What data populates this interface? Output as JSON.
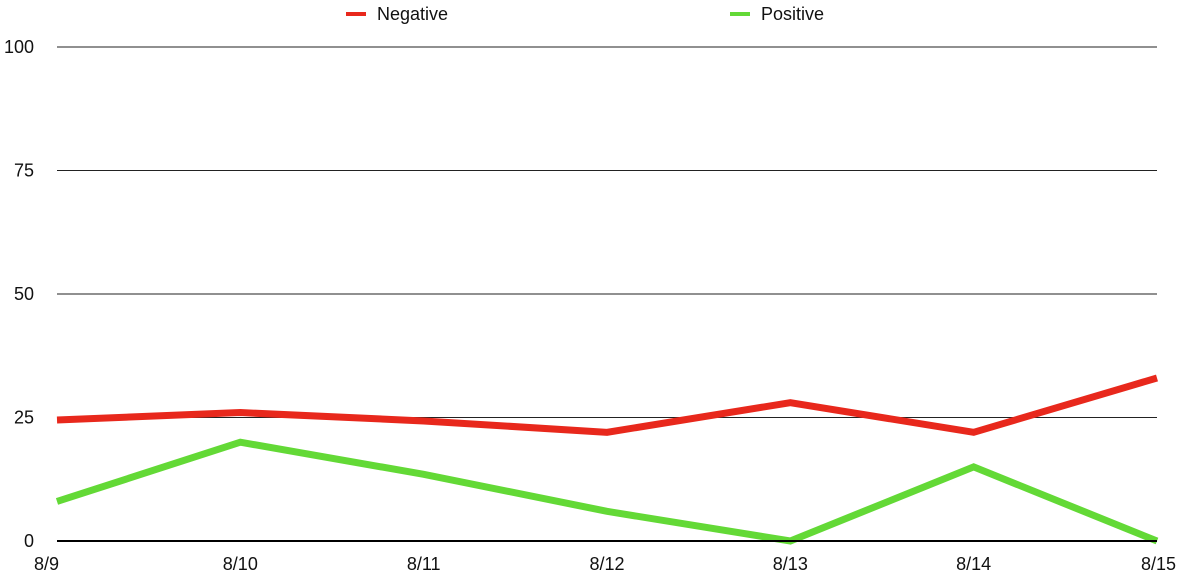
{
  "chart_data": {
    "type": "line",
    "title": "",
    "xlabel": "",
    "ylabel": "",
    "categories": [
      "8/9",
      "8/10",
      "8/11",
      "8/12",
      "8/13",
      "8/14",
      "8/15"
    ],
    "ylim": [
      0,
      100
    ],
    "yticks": [
      0,
      25,
      50,
      75,
      100
    ],
    "grid": true,
    "legend_position": "top",
    "series": [
      {
        "name": "Negative",
        "color": "#e8281c",
        "values": [
          24.5,
          26,
          24.3,
          22,
          28,
          22,
          33
        ]
      },
      {
        "name": "Positive",
        "color": "#63d936",
        "values": [
          8,
          20,
          13.5,
          6,
          0,
          15,
          0
        ]
      }
    ]
  }
}
